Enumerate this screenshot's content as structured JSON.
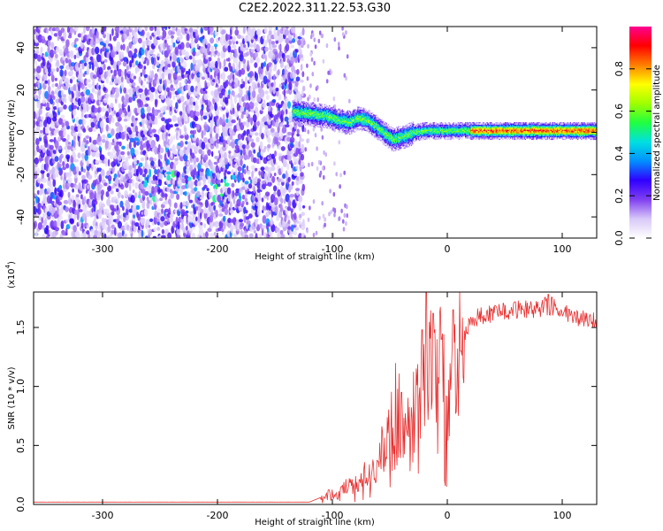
{
  "figure": {
    "title": "C2E2.2022.311.22.53.G30"
  },
  "chart_data": [
    {
      "type": "heatmap",
      "name": "spectrogram",
      "xlabel": "Height of straight line (km)",
      "ylabel": "Frequency (Hz)",
      "xlim": [
        -360,
        130
      ],
      "ylim": [
        -50,
        50
      ],
      "xticks": [
        -300,
        -200,
        -100,
        0,
        100
      ],
      "yticks": [
        -40,
        -20,
        0,
        20,
        40
      ],
      "colorbar": {
        "label": "Normalized spectral amplitude",
        "range": [
          0.0,
          1.0
        ],
        "ticks": [
          "0.0",
          "0.2",
          "0.4",
          "0.6",
          "0.8"
        ],
        "colormap": [
          "#ffffff",
          "#d8c8f8",
          "#8040f0",
          "#3000ff",
          "#0090ff",
          "#00e0e0",
          "#20ff40",
          "#a0ff00",
          "#ffff00",
          "#ff8000",
          "#ff0000",
          "#ff0090"
        ]
      },
      "noise_region": {
        "x_range": [
          -360,
          -125
        ],
        "y_range": [
          -50,
          50
        ],
        "amplitude": 0.2
      },
      "band_center": [
        [
          -135,
          10
        ],
        [
          -120,
          9
        ],
        [
          -105,
          8
        ],
        [
          -95,
          6
        ],
        [
          -85,
          5
        ],
        [
          -78,
          7
        ],
        [
          -70,
          6
        ],
        [
          -62,
          3
        ],
        [
          -55,
          0
        ],
        [
          -48,
          -3
        ],
        [
          -40,
          -2
        ],
        [
          -30,
          0
        ],
        [
          -20,
          1
        ],
        [
          -10,
          1
        ],
        [
          0,
          1
        ],
        [
          20,
          1
        ],
        [
          50,
          1
        ],
        [
          90,
          1
        ],
        [
          130,
          1
        ]
      ],
      "band_half_width_hz": 2,
      "band_amplitude": 0.55,
      "grid": false
    },
    {
      "type": "line",
      "name": "snr",
      "xlabel": "Height of straight line (km)",
      "ylabel": "SNR (10 * v/v)",
      "multiplier": "(x10",
      "multiplier_exp": "4",
      "xlim": [
        -360,
        130
      ],
      "ylim": [
        0,
        1.8
      ],
      "xticks": [
        -300,
        -200,
        -100,
        0,
        100
      ],
      "yticks": [
        0.0,
        0.5,
        1.0,
        1.5
      ],
      "ytick_labels": [
        "0.0",
        "0.5",
        "1.0",
        "1.5"
      ],
      "color": "#e83030",
      "envelope": [
        [
          -360,
          0.02
        ],
        [
          -200,
          0.02
        ],
        [
          -120,
          0.02
        ],
        [
          -105,
          0.08
        ],
        [
          -95,
          0.1
        ],
        [
          -80,
          0.2
        ],
        [
          -65,
          0.3
        ],
        [
          -55,
          0.5
        ],
        [
          -45,
          0.8
        ],
        [
          -35,
          0.6
        ],
        [
          -25,
          0.9
        ],
        [
          -15,
          1.2
        ],
        [
          -8,
          1.3
        ],
        [
          0,
          1.0
        ],
        [
          10,
          1.3
        ],
        [
          20,
          1.55
        ],
        [
          30,
          1.6
        ],
        [
          50,
          1.65
        ],
        [
          70,
          1.65
        ],
        [
          90,
          1.68
        ],
        [
          100,
          1.62
        ],
        [
          130,
          1.55
        ]
      ],
      "spikes": [
        [
          -40,
          0.95
        ],
        [
          -22,
          1.48
        ],
        [
          -18,
          1.8
        ],
        [
          -12,
          1.62
        ],
        [
          -5,
          1.4
        ],
        [
          5,
          1.65
        ],
        [
          12,
          1.3
        ],
        [
          88,
          1.78
        ]
      ],
      "grid": false
    }
  ]
}
